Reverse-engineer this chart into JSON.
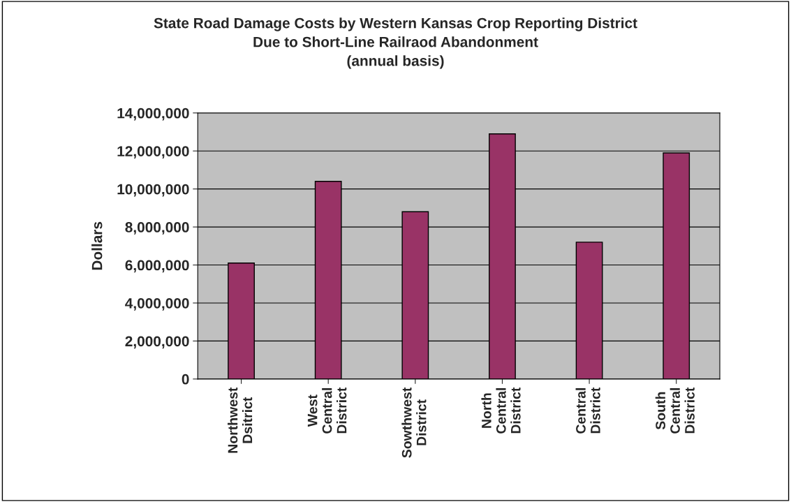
{
  "chart_data": {
    "type": "bar",
    "title": "State Road Damage Costs by Western Kansas Crop Reporting District\nDue to Short-Line Railraod Abandonment\n(annual basis)",
    "ylabel": "Dollars",
    "categories": [
      "Northwest\nDsitrict",
      "West\nCentral\nDistrict",
      "Sowthwest\nDistrict",
      "North\nCentral\nDistrict",
      "Central\nDistrict",
      "South\nCentral\nDistrict"
    ],
    "values": [
      6100000,
      10400000,
      8800000,
      12900000,
      7200000,
      11900000
    ],
    "color": "#993366",
    "ylim": [
      0,
      14000000
    ],
    "yticks": [
      {
        "value": 0,
        "label": "0"
      },
      {
        "value": 2000000,
        "label": "2,000,000"
      },
      {
        "value": 4000000,
        "label": "4,000,000"
      },
      {
        "value": 6000000,
        "label": "6,000,000"
      },
      {
        "value": 8000000,
        "label": "8,000,000"
      },
      {
        "value": 10000000,
        "label": "10,000,000"
      },
      {
        "value": 12000000,
        "label": "12,000,000"
      },
      {
        "value": 14000000,
        "label": "14,000,000"
      }
    ],
    "grid": "y"
  }
}
